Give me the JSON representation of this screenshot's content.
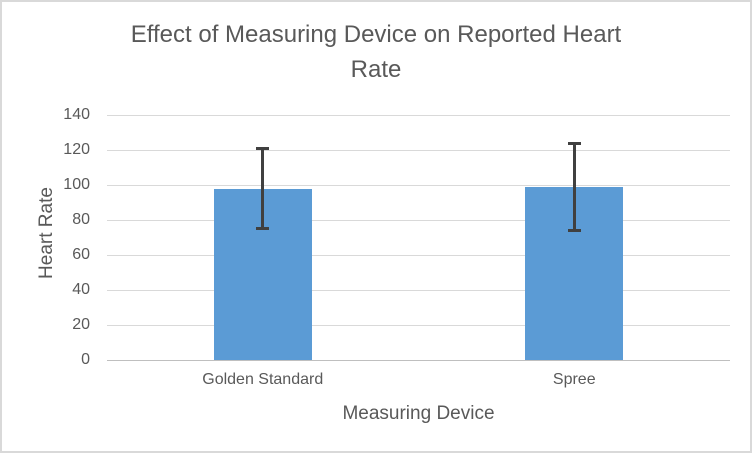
{
  "chart_data": {
    "type": "bar",
    "title": "Effect of Measuring Device on Reported Heart Rate",
    "title_lines": [
      "Effect of Measuring Device on Reported Heart",
      "Rate"
    ],
    "xlabel": "Measuring Device",
    "ylabel": "Heart Rate",
    "categories": [
      "Golden Standard",
      "Spree"
    ],
    "values": [
      98,
      99
    ],
    "error_plus": [
      23,
      25
    ],
    "error_minus": [
      23,
      25
    ],
    "yticks": [
      0,
      20,
      40,
      60,
      80,
      100,
      120,
      140
    ],
    "ylim": [
      0,
      140
    ],
    "grid": true,
    "legend": false,
    "colors": {
      "bar": "#5B9BD5",
      "error_bar": "#404040",
      "text": "#595959",
      "gridline": "#D9D9D9",
      "axis_line": "#BFBFBF",
      "frame_border": "#D9D9D9",
      "background": "#FFFFFF"
    }
  }
}
